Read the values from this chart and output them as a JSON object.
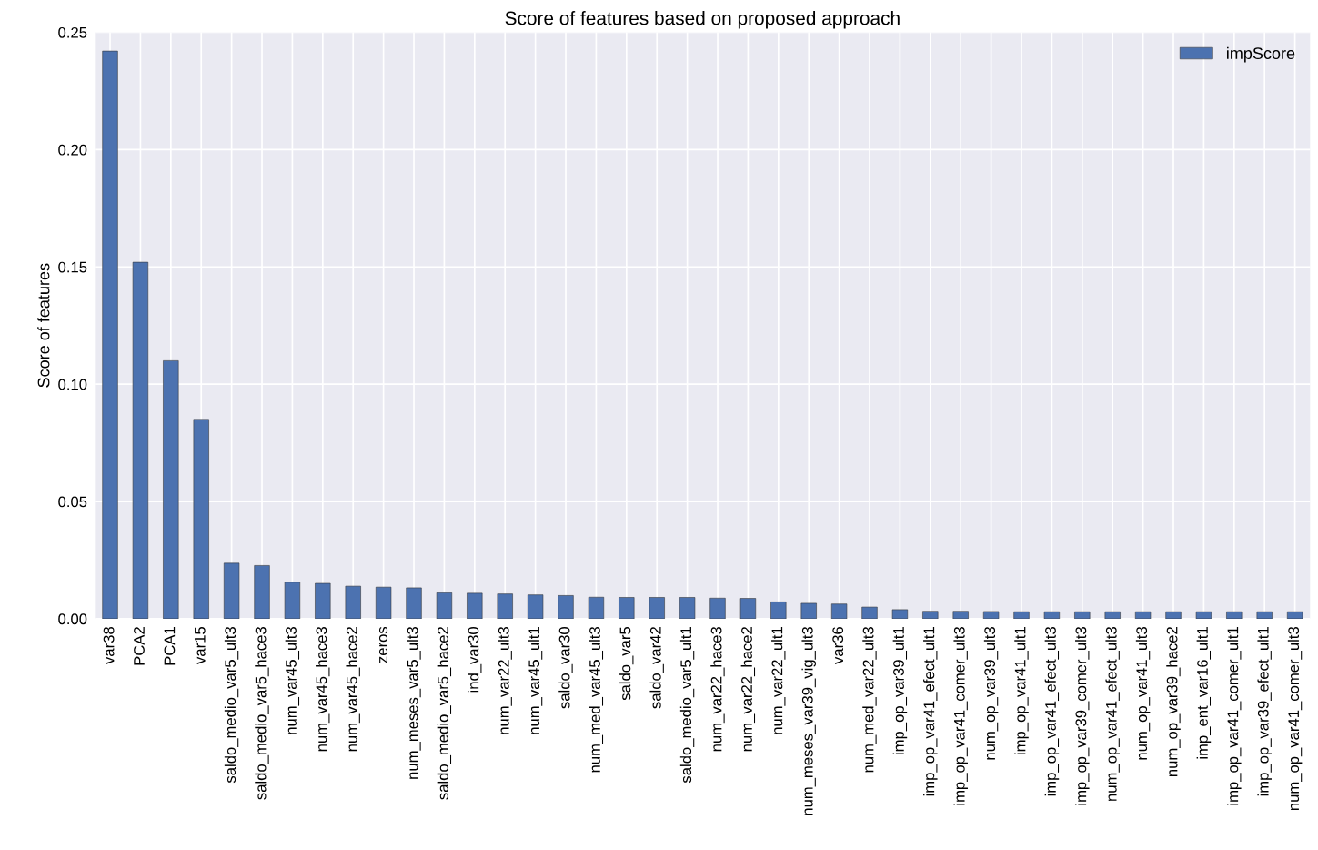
{
  "chart_data": {
    "type": "bar",
    "title": "Score of features based on proposed approach",
    "ylabel": "Score of features",
    "categories": [
      "var38",
      "PCA2",
      "PCA1",
      "var15",
      "saldo_medio_var5_ult3",
      "saldo_medio_var5_hace3",
      "num_var45_ult3",
      "num_var45_hace3",
      "num_var45_hace2",
      "zeros",
      "num_meses_var5_ult3",
      "saldo_medio_var5_hace2",
      "ind_var30",
      "num_var22_ult3",
      "num_var45_ult1",
      "saldo_var30",
      "num_med_var45_ult3",
      "saldo_var5",
      "saldo_var42",
      "saldo_medio_var5_ult1",
      "num_var22_hace3",
      "num_var22_hace2",
      "num_var22_ult1",
      "num_meses_var39_vig_ult3",
      "var36",
      "num_med_var22_ult3",
      "imp_op_var39_ult1",
      "imp_op_var41_efect_ult1",
      "imp_op_var41_comer_ult3",
      "num_op_var39_ult3",
      "imp_op_var41_ult1",
      "imp_op_var41_efect_ult3",
      "imp_op_var39_comer_ult3",
      "num_op_var41_efect_ult3",
      "num_op_var41_ult3",
      "num_op_var39_hace2",
      "imp_ent_var16_ult1",
      "imp_op_var41_comer_ult1",
      "imp_op_var39_efect_ult1",
      "num_op_var41_comer_ult3"
    ],
    "series": [
      {
        "name": "impScore",
        "color": "#4c72b0",
        "values": [
          0.242,
          0.152,
          0.11,
          0.085,
          0.0237,
          0.0227,
          0.0156,
          0.0151,
          0.0139,
          0.0135,
          0.0132,
          0.0111,
          0.0109,
          0.0106,
          0.0102,
          0.0099,
          0.0092,
          0.0091,
          0.0091,
          0.0091,
          0.0088,
          0.0087,
          0.0072,
          0.0066,
          0.0063,
          0.005,
          0.0039,
          0.0032,
          0.0032,
          0.0031,
          0.003,
          0.003,
          0.003,
          0.003,
          0.003,
          0.003,
          0.003,
          0.003,
          0.003,
          0.003
        ]
      }
    ],
    "ylim": [
      0,
      0.25
    ],
    "yticks": [
      {
        "value": 0,
        "label": "0.00"
      },
      {
        "value": 0.05,
        "label": "0.05"
      },
      {
        "value": 0.1,
        "label": "0.10"
      },
      {
        "value": 0.15,
        "label": "0.15"
      },
      {
        "value": 0.2,
        "label": "0.20"
      },
      {
        "value": 0.25,
        "label": "0.25"
      }
    ],
    "grid": true,
    "legend": "top right"
  }
}
